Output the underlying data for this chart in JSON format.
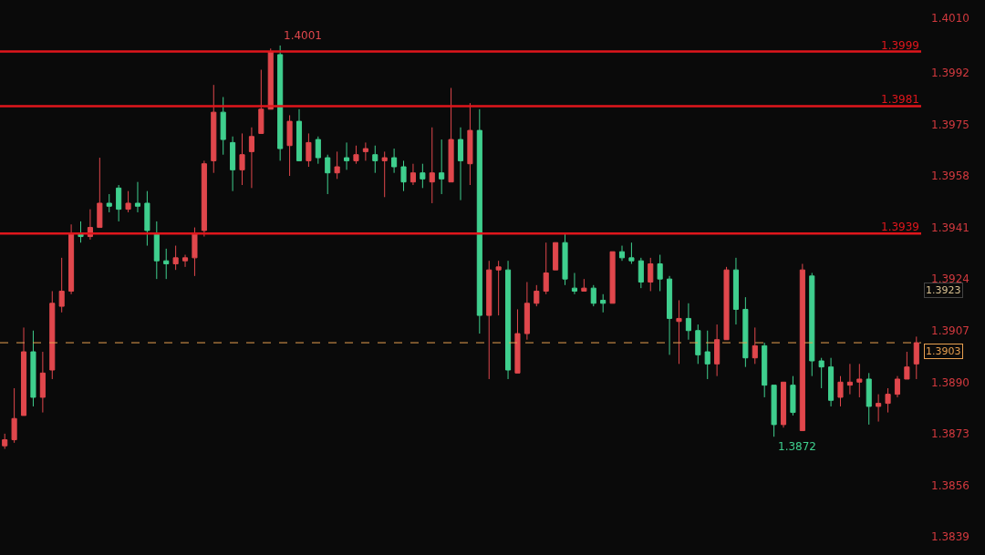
{
  "chart_data": {
    "type": "candlestick",
    "categories": [
      null,
      null,
      null,
      null,
      null,
      null,
      null,
      null,
      null,
      null,
      null,
      null,
      null,
      null,
      null,
      null,
      null,
      null,
      null,
      null,
      null,
      null,
      null,
      null,
      null,
      null,
      null,
      null,
      null,
      null,
      null,
      null,
      null,
      null,
      null,
      null,
      null,
      null,
      null,
      null,
      null,
      null,
      null,
      null,
      null,
      null,
      null,
      null,
      null,
      null,
      null,
      null,
      null,
      null,
      null,
      null,
      null,
      null,
      null,
      null,
      null,
      null,
      null,
      null,
      null,
      null,
      null,
      null,
      null,
      null,
      null,
      null,
      null,
      null,
      null,
      null,
      null,
      null,
      null,
      null,
      null,
      null,
      null,
      null,
      null,
      null,
      null,
      null,
      null,
      null,
      null,
      null,
      null,
      null,
      null,
      null,
      null
    ],
    "ohlc": [
      [
        1.3869,
        1.3873,
        1.3868,
        1.3871
      ],
      [
        1.3871,
        1.3888,
        1.387,
        1.3878
      ],
      [
        1.3879,
        1.3908,
        1.3879,
        1.39
      ],
      [
        1.39,
        1.3907,
        1.3882,
        1.3885
      ],
      [
        1.3885,
        1.39,
        1.388,
        1.3893
      ],
      [
        1.3894,
        1.392,
        1.3891,
        1.3916
      ],
      [
        1.3915,
        1.3931,
        1.3913,
        1.392
      ],
      [
        1.392,
        1.3942,
        1.3919,
        1.3939
      ],
      [
        1.3939,
        1.3943,
        1.3936,
        1.3938
      ],
      [
        1.3938,
        1.3947,
        1.3937,
        1.3941
      ],
      [
        1.3941,
        1.3964,
        1.3941,
        1.3949
      ],
      [
        1.3949,
        1.3952,
        1.3946,
        1.3948
      ],
      [
        1.3954,
        1.3955,
        1.3943,
        1.3947
      ],
      [
        1.3947,
        1.3953,
        1.3946,
        1.3949
      ],
      [
        1.3949,
        1.3956,
        1.3946,
        1.3948
      ],
      [
        1.3949,
        1.3953,
        1.3935,
        1.394
      ],
      [
        1.3939,
        1.3943,
        1.3924,
        1.393
      ],
      [
        1.393,
        1.3934,
        1.3924,
        1.3929
      ],
      [
        1.3929,
        1.3935,
        1.3927,
        1.3931
      ],
      [
        1.393,
        1.3932,
        1.3928,
        1.3931
      ],
      [
        1.3931,
        1.3941,
        1.3925,
        1.3939
      ],
      [
        1.394,
        1.3963,
        1.3938,
        1.3962
      ],
      [
        1.3963,
        1.3988,
        1.3959,
        1.3979
      ],
      [
        1.3979,
        1.3984,
        1.3965,
        1.397
      ],
      [
        1.3969,
        1.3971,
        1.3953,
        1.396
      ],
      [
        1.396,
        1.3972,
        1.3955,
        1.3965
      ],
      [
        1.3966,
        1.3974,
        1.3954,
        1.3971
      ],
      [
        1.3972,
        1.3993,
        1.3972,
        1.398
      ],
      [
        1.398,
        1.4,
        1.398,
        1.3999
      ],
      [
        1.3998,
        1.4001,
        1.3963,
        1.3967
      ],
      [
        1.3968,
        1.3978,
        1.3958,
        1.3976
      ],
      [
        1.3976,
        1.398,
        1.3963,
        1.3963
      ],
      [
        1.3963,
        1.3972,
        1.3961,
        1.3969
      ],
      [
        1.397,
        1.3971,
        1.3962,
        1.3964
      ],
      [
        1.3964,
        1.3965,
        1.3952,
        1.3959
      ],
      [
        1.3959,
        1.3966,
        1.3957,
        1.3961
      ],
      [
        1.3964,
        1.3969,
        1.396,
        1.3963
      ],
      [
        1.3963,
        1.3968,
        1.3962,
        1.3965
      ],
      [
        1.3966,
        1.3969,
        1.3963,
        1.3967
      ],
      [
        1.3965,
        1.3968,
        1.3959,
        1.3963
      ],
      [
        1.3963,
        1.3966,
        1.3951,
        1.3964
      ],
      [
        1.3964,
        1.3967,
        1.3959,
        1.3961
      ],
      [
        1.3961,
        1.3963,
        1.3953,
        1.3956
      ],
      [
        1.3956,
        1.3962,
        1.3955,
        1.3959
      ],
      [
        1.3959,
        1.3962,
        1.3954,
        1.3957
      ],
      [
        1.3956,
        1.3974,
        1.3949,
        1.3959
      ],
      [
        1.3959,
        1.397,
        1.3952,
        1.3957
      ],
      [
        1.3956,
        1.3987,
        1.3956,
        1.397
      ],
      [
        1.397,
        1.3974,
        1.395,
        1.3963
      ],
      [
        1.3962,
        1.3982,
        1.3955,
        1.3973
      ],
      [
        1.3973,
        1.398,
        1.3906,
        1.3912
      ],
      [
        1.3912,
        1.393,
        1.3891,
        1.3927
      ],
      [
        1.3927,
        1.393,
        1.3912,
        1.3928
      ],
      [
        1.3927,
        1.393,
        1.3891,
        1.3894
      ],
      [
        1.3893,
        1.3914,
        1.3893,
        1.3906
      ],
      [
        1.3906,
        1.3923,
        1.3904,
        1.3916
      ],
      [
        1.3916,
        1.3922,
        1.3915,
        1.392
      ],
      [
        1.392,
        1.3936,
        1.3919,
        1.3926
      ],
      [
        1.3927,
        1.3936,
        1.3927,
        1.3936
      ],
      [
        1.3936,
        1.3939,
        1.3922,
        1.3924
      ],
      [
        1.3921,
        1.3926,
        1.3919,
        1.392
      ],
      [
        1.392,
        1.3924,
        1.392,
        1.3921
      ],
      [
        1.3921,
        1.3922,
        1.3915,
        1.3916
      ],
      [
        1.3917,
        1.3919,
        1.3913,
        1.3916
      ],
      [
        1.3916,
        1.3933,
        1.3916,
        1.3933
      ],
      [
        1.3933,
        1.3935,
        1.393,
        1.3931
      ],
      [
        1.3931,
        1.3936,
        1.3929,
        1.393
      ],
      [
        1.393,
        1.3931,
        1.3921,
        1.3923
      ],
      [
        1.3923,
        1.3931,
        1.392,
        1.3929
      ],
      [
        1.3929,
        1.3932,
        1.392,
        1.3924
      ],
      [
        1.3924,
        1.3925,
        1.3899,
        1.3911
      ],
      [
        1.391,
        1.3917,
        1.3896,
        1.3911
      ],
      [
        1.3911,
        1.3916,
        1.3904,
        1.3907
      ],
      [
        1.3907,
        1.3909,
        1.3896,
        1.3899
      ],
      [
        1.39,
        1.3907,
        1.3891,
        1.3896
      ],
      [
        1.3896,
        1.3909,
        1.3892,
        1.3904
      ],
      [
        1.3904,
        1.3928,
        1.3904,
        1.3927
      ],
      [
        1.3927,
        1.3931,
        1.3909,
        1.3914
      ],
      [
        1.3914,
        1.3918,
        1.3895,
        1.3898
      ],
      [
        1.3898,
        1.3908,
        1.3896,
        1.3902
      ],
      [
        1.3902,
        1.3903,
        1.3885,
        1.3889
      ],
      [
        1.3889,
        1.3889,
        1.3872,
        1.3876
      ],
      [
        1.3876,
        1.389,
        1.3875,
        1.389
      ],
      [
        1.3889,
        1.3892,
        1.3879,
        1.388
      ],
      [
        1.3874,
        1.3929,
        1.3874,
        1.3927
      ],
      [
        1.3925,
        1.3926,
        1.3892,
        1.3897
      ],
      [
        1.3897,
        1.3898,
        1.3888,
        1.3895
      ],
      [
        1.3895,
        1.3898,
        1.3882,
        1.3884
      ],
      [
        1.3885,
        1.3892,
        1.3882,
        1.389
      ],
      [
        1.3889,
        1.3896,
        1.3886,
        1.389
      ],
      [
        1.389,
        1.3896,
        1.3885,
        1.3891
      ],
      [
        1.3891,
        1.3893,
        1.3876,
        1.3882
      ],
      [
        1.3882,
        1.3886,
        1.3877,
        1.3883
      ],
      [
        1.3883,
        1.3888,
        1.388,
        1.3886
      ],
      [
        1.3886,
        1.3892,
        1.3885,
        1.3891
      ],
      [
        1.3891,
        1.39,
        1.3891,
        1.3895
      ],
      [
        1.3896,
        1.3905,
        1.3891,
        1.3903
      ]
    ],
    "colors": [
      "#e0474c",
      "#e0474c",
      "#e0474c",
      "#3fcf8e",
      "#e0474c",
      "#e0474c",
      "#e0474c",
      "#e0474c",
      "#3fcf8e",
      "#e0474c",
      "#e0474c",
      "#3fcf8e",
      "#3fcf8e",
      "#e0474c",
      "#3fcf8e",
      "#3fcf8e",
      "#3fcf8e",
      "#3fcf8e",
      "#e0474c",
      "#e0474c",
      "#e0474c",
      "#e0474c",
      "#e0474c",
      "#3fcf8e",
      "#3fcf8e",
      "#e0474c",
      "#e0474c",
      "#e0474c",
      "#e0474c",
      "#3fcf8e",
      "#e0474c",
      "#3fcf8e",
      "#e0474c",
      "#3fcf8e",
      "#3fcf8e",
      "#e0474c",
      "#3fcf8e",
      "#e0474c",
      "#e0474c",
      "#3fcf8e",
      "#e0474c",
      "#3fcf8e",
      "#3fcf8e",
      "#e0474c",
      "#3fcf8e",
      "#e0474c",
      "#3fcf8e",
      "#e0474c",
      "#3fcf8e",
      "#e0474c",
      "#3fcf8e",
      "#e0474c",
      "#e0474c",
      "#3fcf8e",
      "#e0474c",
      "#e0474c",
      "#e0474c",
      "#e0474c",
      "#e0474c",
      "#3fcf8e",
      "#3fcf8e",
      "#e0474c",
      "#3fcf8e",
      "#3fcf8e",
      "#e0474c",
      "#3fcf8e",
      "#3fcf8e",
      "#3fcf8e",
      "#e0474c",
      "#3fcf8e",
      "#3fcf8e",
      "#e0474c",
      "#3fcf8e",
      "#3fcf8e",
      "#3fcf8e",
      "#e0474c",
      "#e0474c",
      "#3fcf8e",
      "#3fcf8e",
      "#e0474c",
      "#3fcf8e",
      "#3fcf8e",
      "#e0474c",
      "#3fcf8e",
      "#e0474c",
      "#3fcf8e",
      "#3fcf8e",
      "#3fcf8e",
      "#e0474c",
      "#e0474c",
      "#e0474c",
      "#3fcf8e",
      "#e0474c",
      "#e0474c",
      "#e0474c",
      "#e0474c",
      "#e0474c"
    ],
    "ylim": [
      1.3833,
      1.4016
    ],
    "yticks": [
      {
        "value": 1.401,
        "label": "1.4010"
      },
      {
        "value": 1.3992,
        "label": "1.3992"
      },
      {
        "value": 1.3975,
        "label": "1.3975"
      },
      {
        "value": 1.3958,
        "label": "1.3958"
      },
      {
        "value": 1.3941,
        "label": "1.3941"
      },
      {
        "value": 1.3924,
        "label": "1.3924"
      },
      {
        "value": 1.3907,
        "label": "1.3907"
      },
      {
        "value": 1.389,
        "label": "1.3890"
      },
      {
        "value": 1.3873,
        "label": "1.3873"
      },
      {
        "value": 1.3856,
        "label": "1.3856"
      },
      {
        "value": 1.3839,
        "label": "1.3839"
      }
    ],
    "tick_labels": "y",
    "ref_lines": [
      {
        "axis": "y",
        "value": 1.3999,
        "label": "1.3999",
        "color": "#e0161c",
        "line_style": "solid"
      },
      {
        "axis": "y",
        "value": 1.3981,
        "label": "1.3981",
        "color": "#e0161c",
        "line_style": "solid"
      },
      {
        "axis": "y",
        "value": 1.3939,
        "label": "1.3939",
        "color": "#e0161c",
        "line_style": "solid"
      },
      {
        "axis": "y",
        "value": 1.3903,
        "label": "1.3903",
        "color": "#e8a050",
        "line_style": "dashed"
      }
    ],
    "annotations": [
      "1.4001",
      "1.3872",
      "1.3923"
    ]
  }
}
